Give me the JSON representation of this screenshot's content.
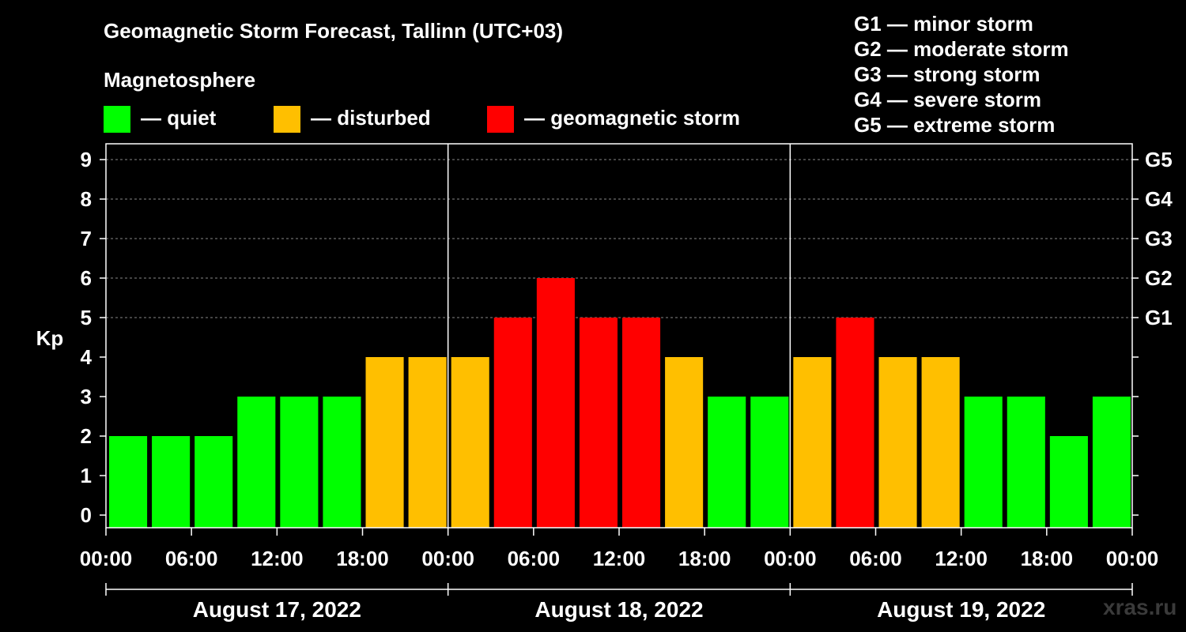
{
  "title": "Geomagnetic Storm Forecast, Tallinn (UTC+03)",
  "magnetosphere_title": "Magnetosphere",
  "legend": [
    {
      "label": "— quiet",
      "color": "#00ff00"
    },
    {
      "label": "— disturbed",
      "color": "#ffbf00"
    },
    {
      "label": "— geomagnetic storm",
      "color": "#ff0000"
    }
  ],
  "storm_scale": [
    "G1 — minor storm",
    "G2 — moderate storm",
    "G3 — strong storm",
    "G4 — severe storm",
    "G5 — extreme storm"
  ],
  "watermark": "xras.ru",
  "colors": {
    "quiet": "#00ff00",
    "disturbed": "#ffbf00",
    "storm": "#ff0000",
    "background": "#000000",
    "axis": "#ffffff",
    "grid": "#888888"
  },
  "chart_data": {
    "type": "bar",
    "ylabel": "Kp",
    "ylim": [
      0,
      9
    ],
    "yticks": [
      0,
      1,
      2,
      3,
      4,
      5,
      6,
      7,
      8,
      9
    ],
    "right_axis": [
      {
        "kp": 5,
        "label": "G1"
      },
      {
        "kp": 6,
        "label": "G2"
      },
      {
        "kp": 7,
        "label": "G3"
      },
      {
        "kp": 8,
        "label": "G4"
      },
      {
        "kp": 9,
        "label": "G5"
      }
    ],
    "grid_lines_at": [
      5,
      6,
      7,
      8,
      9
    ],
    "x_tick_labels": [
      "00:00",
      "06:00",
      "12:00",
      "18:00",
      "00:00",
      "06:00",
      "12:00",
      "18:00",
      "00:00",
      "06:00",
      "12:00",
      "18:00",
      "00:00"
    ],
    "days": [
      "August 17, 2022",
      "August 18, 2022",
      "August 19, 2022"
    ],
    "categories": [
      "Aug 17 00:00",
      "Aug 17 03:00",
      "Aug 17 06:00",
      "Aug 17 09:00",
      "Aug 17 12:00",
      "Aug 17 15:00",
      "Aug 17 18:00",
      "Aug 17 21:00",
      "Aug 18 00:00",
      "Aug 18 03:00",
      "Aug 18 06:00",
      "Aug 18 09:00",
      "Aug 18 12:00",
      "Aug 18 15:00",
      "Aug 18 18:00",
      "Aug 18 21:00",
      "Aug 19 00:00",
      "Aug 19 03:00",
      "Aug 19 06:00",
      "Aug 19 09:00",
      "Aug 19 12:00",
      "Aug 19 15:00",
      "Aug 19 18:00",
      "Aug 19 21:00"
    ],
    "values": [
      2,
      2,
      2,
      3,
      3,
      3,
      4,
      4,
      4,
      5,
      6,
      5,
      5,
      4,
      3,
      3,
      4,
      5,
      4,
      4,
      3,
      3,
      2,
      3
    ],
    "color_rule": {
      "quiet": "Kp <= 3",
      "disturbed": "Kp = 4",
      "storm": "Kp >= 5"
    }
  }
}
